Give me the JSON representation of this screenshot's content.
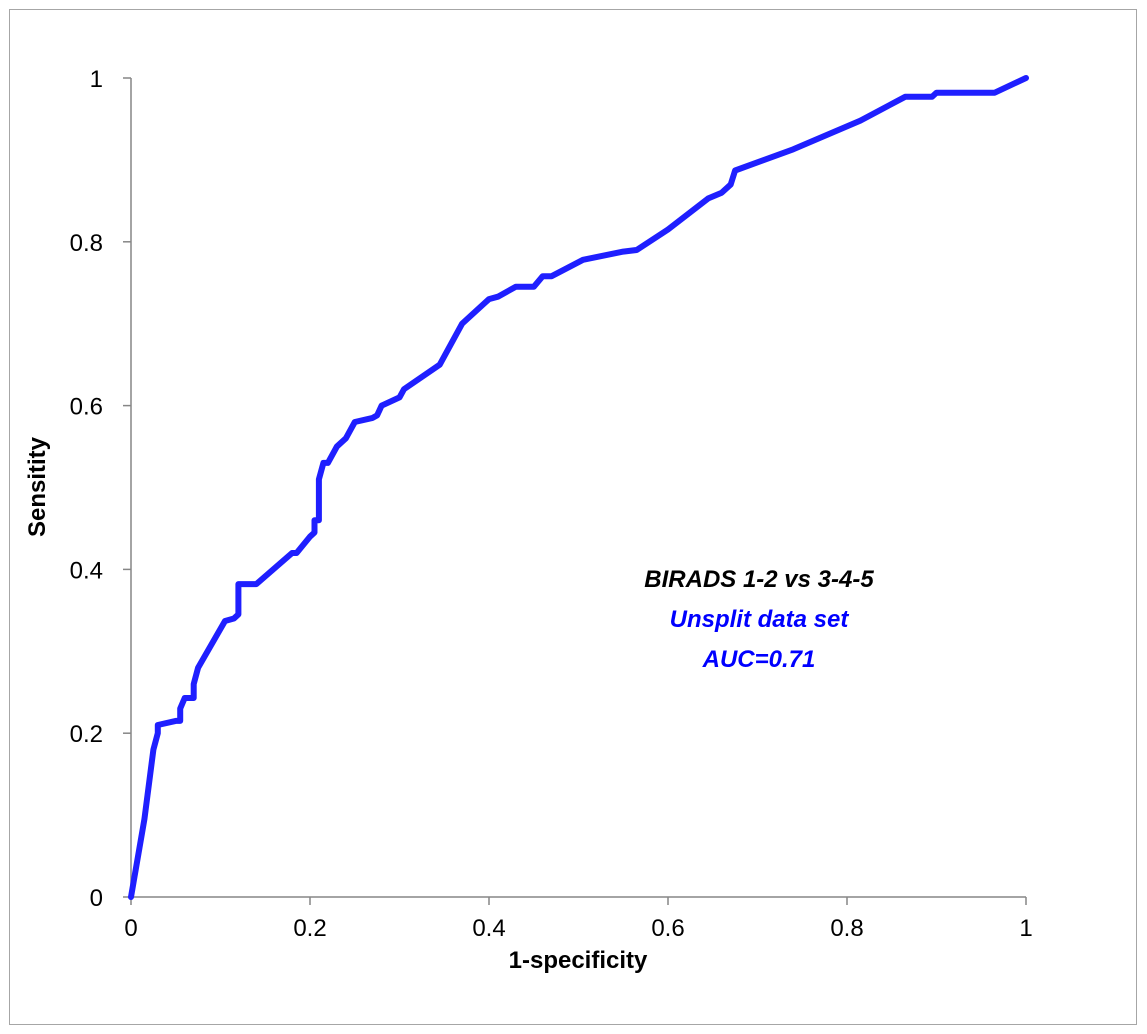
{
  "chart_data": {
    "type": "line",
    "title": "",
    "xlabel": "1-specificity",
    "ylabel": "Sensitity",
    "xlim": [
      0,
      1
    ],
    "ylim": [
      0,
      1
    ],
    "x_ticks": [
      "0",
      "0.2",
      "0.4",
      "0.6",
      "0.8",
      "1"
    ],
    "y_ticks": [
      "0",
      "0.2",
      "0.4",
      "0.6",
      "0.8",
      "1"
    ],
    "grid": false,
    "legend": "none",
    "annotations": [
      {
        "text": "BIRADS 1-2 vs 3-4-5",
        "color": "#000000"
      },
      {
        "text": "Unsplit data set",
        "color": "#0000ff"
      },
      {
        "text": "AUC=0.71",
        "color": "#0000ff"
      }
    ],
    "series": [
      {
        "color": "#1f1fff",
        "x": [
          0,
          0.015,
          0.025,
          0.03,
          0.03,
          0.05,
          0.055,
          0.055,
          0.06,
          0.07,
          0.07,
          0.075,
          0.105,
          0.115,
          0.12,
          0.12,
          0.14,
          0.18,
          0.185,
          0.2,
          0.205,
          0.205,
          0.21,
          0.21,
          0.215,
          0.22,
          0.23,
          0.24,
          0.25,
          0.27,
          0.275,
          0.28,
          0.3,
          0.305,
          0.345,
          0.37,
          0.395,
          0.4,
          0.41,
          0.43,
          0.45,
          0.46,
          0.47,
          0.505,
          0.55,
          0.565,
          0.6,
          0.645,
          0.66,
          0.67,
          0.675,
          0.675,
          0.74,
          0.815,
          0.865,
          0.895,
          0.9,
          0.965,
          1.0
        ],
        "y": [
          0,
          0.095,
          0.18,
          0.2,
          0.21,
          0.215,
          0.215,
          0.23,
          0.243,
          0.243,
          0.26,
          0.28,
          0.337,
          0.34,
          0.345,
          0.382,
          0.382,
          0.42,
          0.42,
          0.44,
          0.445,
          0.46,
          0.46,
          0.51,
          0.53,
          0.53,
          0.55,
          0.56,
          0.58,
          0.585,
          0.588,
          0.6,
          0.61,
          0.62,
          0.65,
          0.7,
          0.725,
          0.73,
          0.733,
          0.745,
          0.745,
          0.758,
          0.758,
          0.778,
          0.788,
          0.79,
          0.815,
          0.853,
          0.86,
          0.87,
          0.887,
          0.887,
          0.913,
          0.948,
          0.977,
          0.977,
          0.982,
          0.982,
          1.0
        ]
      }
    ]
  }
}
